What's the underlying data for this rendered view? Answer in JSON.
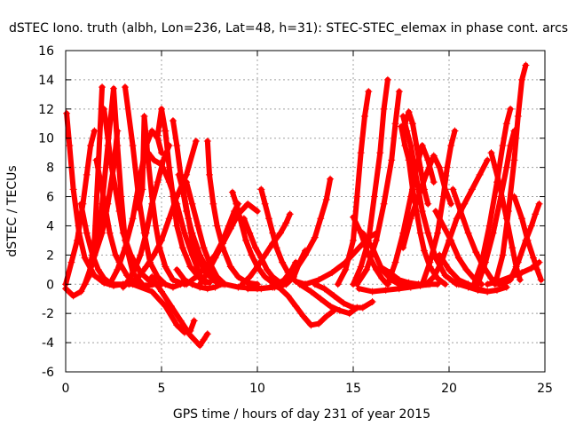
{
  "chart_data": {
    "type": "scatter",
    "title": "dSTEC Iono. truth (albh, Lon=236, Lat=48, h=31): STEC-STEC_elemax in phase cont. arcs",
    "xlabel": "GPS time / hours of day 231 of year 2015",
    "ylabel": "dSTEC  / TECUs",
    "xlim": [
      0,
      25
    ],
    "ylim": [
      -6,
      16
    ],
    "xticks": [
      0,
      5,
      10,
      15,
      20,
      25
    ],
    "yticks": [
      -6,
      -4,
      -2,
      0,
      2,
      4,
      6,
      8,
      10,
      12,
      14,
      16
    ],
    "grid": true,
    "marker": "+",
    "color": "#ff0000",
    "series": [
      {
        "x": [
          0.05,
          0.2,
          0.4,
          0.7,
          1.0,
          1.5,
          2.0,
          2.5,
          3.0,
          3.5
        ],
        "y": [
          11.7,
          9.5,
          6.5,
          3.5,
          1.8,
          0.6,
          0.1,
          -0.1,
          0.0,
          0.1
        ]
      },
      {
        "x": [
          0.0,
          0.3,
          0.6,
          0.9,
          1.1,
          1.3,
          1.5
        ],
        "y": [
          0.0,
          1.5,
          3.0,
          5.5,
          7.5,
          9.5,
          10.5
        ]
      },
      {
        "x": [
          0.0,
          0.4,
          0.8,
          1.2,
          1.5,
          1.7,
          1.9
        ],
        "y": [
          -0.3,
          -0.8,
          -0.5,
          0.5,
          3.0,
          8.0,
          13.5
        ]
      },
      {
        "x": [
          1.2,
          1.6,
          1.9,
          2.2,
          2.5,
          2.7,
          2.9,
          3.1,
          3.5,
          4.0
        ],
        "y": [
          0.5,
          2.5,
          5.5,
          9.5,
          13.4,
          9.5,
          6.0,
          3.0,
          0.8,
          0.0
        ]
      },
      {
        "x": [
          0.8,
          1.1,
          1.4,
          1.7,
          2.0,
          2.4
        ],
        "y": [
          5.5,
          3.5,
          2.0,
          1.0,
          0.4,
          0.0
        ]
      },
      {
        "x": [
          1.6,
          1.9,
          2.1,
          2.3,
          2.6,
          2.8,
          3.2,
          3.6,
          4.2,
          4.7
        ],
        "y": [
          8.5,
          6.5,
          5.0,
          3.5,
          2.0,
          1.5,
          0.6,
          0.1,
          -0.1,
          0.0
        ]
      },
      {
        "x": [
          2.0,
          2.2,
          2.4,
          2.6,
          2.8,
          3.0,
          3.4,
          3.9,
          4.4,
          5.0
        ],
        "y": [
          12.0,
          10.0,
          8.0,
          6.5,
          5.0,
          3.5,
          2.0,
          0.8,
          0.2,
          0.0
        ]
      },
      {
        "x": [
          2.3,
          2.7,
          3.1,
          3.5,
          3.9,
          4.2,
          4.5,
          4.8,
          5.0
        ],
        "y": [
          0.0,
          1.0,
          2.5,
          4.5,
          7.5,
          9.5,
          10.5,
          10.0,
          9.0
        ]
      },
      {
        "x": [
          1.0,
          1.4,
          1.9,
          2.2,
          2.5,
          2.7
        ],
        "y": [
          0.0,
          1.5,
          3.5,
          5.5,
          8.0,
          10.5
        ]
      },
      {
        "x": [
          3.1,
          3.5,
          3.8,
          4.1,
          4.4,
          4.8,
          5.2,
          5.6,
          6.0
        ],
        "y": [
          13.5,
          9.5,
          6.0,
          3.5,
          1.5,
          0.5,
          0.0,
          -0.2,
          0.0
        ]
      },
      {
        "x": [
          3.3,
          3.8,
          4.2,
          4.6,
          5.0,
          5.4,
          5.8,
          6.3,
          6.8
        ],
        "y": [
          0.0,
          0.5,
          1.2,
          2.0,
          3.0,
          4.5,
          6.0,
          7.5,
          9.8
        ]
      },
      {
        "x": [
          3.0,
          3.3,
          3.6,
          3.9,
          4.2,
          4.5,
          4.8,
          5.1,
          5.4
        ],
        "y": [
          -0.2,
          0.3,
          1.0,
          2.0,
          3.5,
          5.5,
          7.0,
          8.5,
          9.5
        ]
      },
      {
        "x": [
          3.8,
          4.0,
          4.1,
          4.3,
          4.5,
          4.7,
          4.9,
          5.2,
          5.6,
          6.2
        ],
        "y": [
          5.2,
          6.5,
          11.5,
          8.5,
          6.0,
          4.0,
          2.5,
          1.2,
          0.3,
          0.0
        ]
      },
      {
        "x": [
          4.8,
          5.0,
          5.2,
          5.4,
          5.6,
          5.8,
          6.1,
          6.5,
          7.0,
          7.5
        ],
        "y": [
          10.2,
          12.0,
          10.5,
          8.0,
          6.0,
          4.0,
          2.5,
          1.2,
          0.4,
          0.1
        ]
      },
      {
        "x": [
          4.3,
          4.6,
          5.0,
          5.4,
          5.8,
          6.2,
          6.6,
          6.9,
          7.1,
          7.3
        ],
        "y": [
          9.0,
          8.5,
          8.2,
          7.0,
          5.5,
          3.5,
          2.0,
          1.0,
          0.4,
          0.1
        ]
      },
      {
        "x": [
          2.5,
          3.5,
          4.5,
          5.2,
          5.8,
          6.2,
          6.5,
          6.7
        ],
        "y": [
          0.0,
          0.0,
          -0.5,
          -1.5,
          -2.8,
          -3.3,
          -3.2,
          -2.5
        ]
      },
      {
        "x": [
          4.5,
          5.0,
          5.5,
          6.0,
          6.5,
          7.0,
          7.2,
          7.4
        ],
        "y": [
          0.5,
          -0.5,
          -1.5,
          -2.5,
          -3.5,
          -4.2,
          -3.8,
          -3.4
        ]
      },
      {
        "x": [
          5.6,
          5.8,
          6.0,
          6.2,
          6.4,
          6.6,
          6.9,
          7.3,
          7.8,
          8.3
        ],
        "y": [
          11.2,
          9.5,
          7.5,
          6.0,
          4.5,
          3.0,
          1.8,
          0.8,
          0.2,
          0.0
        ]
      },
      {
        "x": [
          5.9,
          6.1,
          6.3,
          6.6,
          7.0,
          7.4,
          7.8,
          8.2
        ],
        "y": [
          7.5,
          6.5,
          5.0,
          3.5,
          2.0,
          1.0,
          0.4,
          0.0
        ]
      },
      {
        "x": [
          6.3,
          6.6,
          6.9,
          7.2,
          7.5,
          7.9,
          8.3
        ],
        "y": [
          7.0,
          5.5,
          4.0,
          2.5,
          1.5,
          0.5,
          0.0
        ]
      },
      {
        "x": [
          5.8,
          6.2,
          6.6,
          7.0,
          7.4,
          7.8,
          8.1
        ],
        "y": [
          1.0,
          0.3,
          0.0,
          -0.2,
          -0.3,
          -0.2,
          0.0
        ]
      },
      {
        "x": [
          7.4,
          7.5,
          7.7,
          7.9,
          8.2,
          8.6,
          9.0,
          9.5,
          10.0
        ],
        "y": [
          9.8,
          7.5,
          5.5,
          4.0,
          2.5,
          1.2,
          0.5,
          0.1,
          0.0
        ]
      },
      {
        "x": [
          6.3,
          6.8,
          7.3,
          7.8,
          8.2,
          8.5,
          8.8,
          9.0
        ],
        "y": [
          0.0,
          0.5,
          1.2,
          2.0,
          3.0,
          4.0,
          5.0,
          5.5
        ]
      },
      {
        "x": [
          7.0,
          7.4,
          7.8,
          8.2,
          8.6,
          9.0,
          9.5,
          10.0
        ],
        "y": [
          0.0,
          0.8,
          1.8,
          2.8,
          3.8,
          4.8,
          5.5,
          5.0
        ]
      },
      {
        "x": [
          8.7,
          8.9,
          9.1,
          9.4,
          9.7,
          10.0,
          10.4,
          10.8,
          11.2
        ],
        "y": [
          6.3,
          5.5,
          4.5,
          3.0,
          2.0,
          1.2,
          0.5,
          0.1,
          0.0
        ]
      },
      {
        "x": [
          9.3,
          9.6,
          9.9,
          10.2,
          10.5,
          10.8,
          11.2,
          11.5
        ],
        "y": [
          4.5,
          3.5,
          2.5,
          1.8,
          1.0,
          0.5,
          0.1,
          0.0
        ]
      },
      {
        "x": [
          10.2,
          10.4,
          10.6,
          10.8,
          11.0,
          11.3,
          11.6,
          12.0,
          12.5
        ],
        "y": [
          6.5,
          5.5,
          4.5,
          3.5,
          2.5,
          1.5,
          0.8,
          0.2,
          0.0
        ]
      },
      {
        "x": [
          9.2,
          9.6,
          10.0,
          10.4,
          10.8,
          11.2,
          11.5,
          11.7
        ],
        "y": [
          0.0,
          0.5,
          1.2,
          2.0,
          2.8,
          3.5,
          4.2,
          4.8
        ]
      },
      {
        "x": [
          10.8,
          11.2,
          11.6,
          12.0,
          12.4,
          12.8,
          13.2,
          13.6,
          14.0
        ],
        "y": [
          0.0,
          -0.3,
          -0.8,
          -1.5,
          -2.2,
          -2.8,
          -2.7,
          -2.2,
          -1.8
        ]
      },
      {
        "x": [
          9.5,
          10.2,
          10.9,
          11.5,
          11.9,
          12.2,
          12.5
        ],
        "y": [
          -0.3,
          -0.3,
          -0.2,
          0.0,
          0.5,
          1.5,
          2.3
        ]
      },
      {
        "x": [
          8.0,
          9.0,
          10.0,
          10.8,
          11.4,
          11.8,
          12.0
        ],
        "y": [
          0.1,
          -0.2,
          -0.3,
          -0.2,
          0.3,
          1.0,
          1.5
        ]
      },
      {
        "x": [
          11.0,
          11.5,
          12.0,
          12.5,
          13.0,
          13.3,
          13.6,
          13.8
        ],
        "y": [
          0.0,
          0.3,
          1.0,
          2.0,
          3.2,
          4.5,
          5.8,
          7.2
        ]
      },
      {
        "x": [
          12.2,
          12.8,
          13.3,
          13.8,
          14.3,
          14.8,
          15.2
        ],
        "y": [
          0.0,
          -0.5,
          -1.0,
          -1.5,
          -1.8,
          -2.0,
          -1.6
        ]
      },
      {
        "x": [
          13.0,
          13.5,
          14.0,
          14.5,
          15.0,
          15.5,
          16.0
        ],
        "y": [
          0.0,
          -0.3,
          -0.8,
          -1.3,
          -1.6,
          -1.6,
          -1.2
        ]
      },
      {
        "x": [
          12.5,
          13.2,
          13.9,
          14.6,
          15.3,
          15.8,
          16.2
        ],
        "y": [
          0.0,
          0.3,
          0.8,
          1.5,
          2.5,
          3.2,
          3.5
        ]
      },
      {
        "x": [
          14.2,
          14.6,
          15.0,
          15.2,
          15.4,
          15.6,
          15.8
        ],
        "y": [
          0.0,
          1.0,
          3.0,
          6.0,
          9.0,
          11.5,
          13.2
        ]
      },
      {
        "x": [
          15.0,
          15.4,
          15.8,
          16.2,
          16.5,
          16.7,
          16.8
        ],
        "y": [
          4.6,
          3.5,
          2.0,
          1.0,
          0.4,
          0.1,
          0.0
        ]
      },
      {
        "x": [
          15.0,
          15.4,
          15.8,
          16.1,
          16.4,
          16.6,
          16.8
        ],
        "y": [
          0.0,
          1.2,
          3.0,
          6.0,
          9.0,
          12.0,
          14.0
        ]
      },
      {
        "x": [
          15.2,
          15.7,
          16.2,
          16.6,
          17.0,
          17.2,
          17.4
        ],
        "y": [
          0.0,
          1.0,
          3.0,
          5.5,
          8.5,
          11.0,
          13.2
        ]
      },
      {
        "x": [
          15.5,
          16.0,
          16.5,
          17.0,
          17.4,
          17.8
        ],
        "y": [
          3.5,
          2.5,
          1.0,
          0.3,
          0.0,
          0.0
        ]
      },
      {
        "x": [
          15.3,
          16.0,
          16.7,
          17.4,
          18.0,
          18.5,
          19.0
        ],
        "y": [
          -0.3,
          -0.5,
          -0.4,
          -0.3,
          -0.2,
          -0.1,
          0.0
        ]
      },
      {
        "x": [
          16.4,
          16.9,
          17.4,
          17.9,
          18.4,
          18.9,
          19.4
        ],
        "y": [
          1.2,
          0.8,
          0.3,
          0.1,
          0.0,
          0.0,
          0.0
        ]
      },
      {
        "x": [
          17.5,
          17.7,
          17.9,
          18.1,
          18.3,
          18.5,
          18.7,
          19.0,
          19.4,
          19.8
        ],
        "y": [
          10.8,
          9.5,
          8.5,
          6.5,
          5.0,
          3.5,
          2.3,
          1.2,
          0.4,
          0.0
        ]
      },
      {
        "x": [
          17.6,
          17.8,
          18.0,
          18.2,
          18.4,
          18.6,
          18.9,
          19.3,
          19.8,
          20.4
        ],
        "y": [
          11.5,
          10.5,
          9.5,
          8.0,
          6.5,
          5.0,
          3.5,
          1.8,
          0.6,
          0.0
        ]
      },
      {
        "x": [
          17.7,
          17.9,
          18.1,
          18.3,
          18.5,
          18.7,
          18.9
        ],
        "y": [
          11.0,
          11.8,
          11.0,
          9.5,
          8.0,
          6.5,
          5.5
        ]
      },
      {
        "x": [
          16.8,
          17.2,
          17.6,
          18.0,
          18.3,
          18.6,
          18.9,
          19.2
        ],
        "y": [
          0.0,
          1.5,
          3.5,
          6.0,
          8.0,
          9.5,
          8.5,
          7.0
        ]
      },
      {
        "x": [
          17.6,
          18.0,
          18.4,
          18.8,
          19.2,
          19.5,
          19.8,
          20.1
        ],
        "y": [
          2.5,
          4.5,
          6.0,
          7.5,
          8.8,
          8.0,
          6.5,
          5.5
        ]
      },
      {
        "x": [
          18.6,
          19.0,
          19.4,
          19.7,
          19.9,
          20.1,
          20.3
        ],
        "y": [
          0.0,
          1.5,
          3.5,
          6.0,
          8.0,
          9.5,
          10.5
        ]
      },
      {
        "x": [
          19.3,
          19.7,
          20.1,
          20.5,
          20.9,
          21.3,
          21.7
        ],
        "y": [
          5.0,
          4.0,
          3.0,
          1.8,
          1.0,
          0.4,
          0.0
        ]
      },
      {
        "x": [
          18.8,
          19.2,
          19.6,
          20.0,
          20.4,
          20.8,
          21.2,
          21.6,
          22.0
        ],
        "y": [
          0.0,
          0.5,
          1.5,
          3.0,
          4.5,
          5.5,
          6.5,
          7.5,
          8.5
        ]
      },
      {
        "x": [
          20.2,
          20.6,
          21.0,
          21.4,
          21.8,
          22.2,
          22.6
        ],
        "y": [
          6.5,
          5.0,
          3.5,
          2.2,
          1.2,
          0.4,
          0.0
        ]
      },
      {
        "x": [
          19.5,
          20.0,
          20.5,
          21.0,
          21.5,
          22.0
        ],
        "y": [
          2.0,
          1.0,
          0.3,
          0.0,
          -0.3,
          -0.5
        ]
      },
      {
        "x": [
          20.5,
          21.0,
          21.5,
          22.0,
          22.5,
          23.0
        ],
        "y": [
          0.0,
          -0.2,
          -0.4,
          -0.5,
          -0.4,
          -0.2
        ]
      },
      {
        "x": [
          21.3,
          21.7,
          22.1,
          22.5,
          22.8,
          23.0,
          23.2
        ],
        "y": [
          0.0,
          1.5,
          4.0,
          7.0,
          9.5,
          11.0,
          12.0
        ]
      },
      {
        "x": [
          21.5,
          21.9,
          22.3,
          22.7,
          23.0,
          23.2,
          23.4
        ],
        "y": [
          0.0,
          1.5,
          3.5,
          6.0,
          8.0,
          9.5,
          10.5
        ]
      },
      {
        "x": [
          22.2,
          22.6,
          23.0,
          23.3,
          23.5,
          23.7
        ],
        "y": [
          9.0,
          7.0,
          4.5,
          2.5,
          1.2,
          0.3
        ]
      },
      {
        "x": [
          22.4,
          22.8,
          23.1,
          23.4,
          23.6,
          23.8,
          24.0
        ],
        "y": [
          0.0,
          2.0,
          5.0,
          8.5,
          11.5,
          14.0,
          15.0
        ]
      },
      {
        "x": [
          22.8,
          23.2,
          23.6,
          24.0,
          24.3,
          24.5,
          24.7
        ],
        "y": [
          0.0,
          0.3,
          1.5,
          3.0,
          4.0,
          4.8,
          5.5
        ]
      },
      {
        "x": [
          22.0,
          22.6,
          23.2,
          23.8,
          24.3,
          24.7
        ],
        "y": [
          0.0,
          0.2,
          0.5,
          0.8,
          1.1,
          1.5
        ]
      },
      {
        "x": [
          23.4,
          23.8,
          24.1,
          24.4,
          24.6,
          24.8
        ],
        "y": [
          6.0,
          4.5,
          3.0,
          1.8,
          1.0,
          0.3
        ]
      }
    ]
  }
}
